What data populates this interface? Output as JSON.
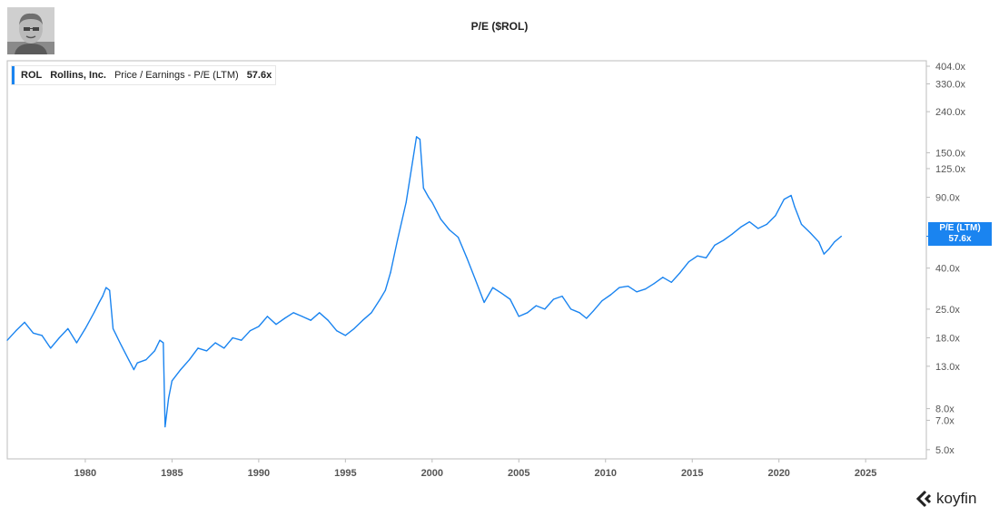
{
  "header": {
    "title": "P/E ($ROL)"
  },
  "legend": {
    "symbol": "ROL",
    "company": "Rollins, Inc.",
    "metric": "Price / Earnings - P/E (LTM)",
    "value": "57.6x",
    "color": "#1a84f0"
  },
  "value_tag": {
    "label": "P/E (LTM)",
    "value": "57.6x"
  },
  "brand": {
    "name": "koyfin"
  },
  "chart_data": {
    "type": "line",
    "title": "P/E ($ROL)",
    "xlabel": "",
    "ylabel": "",
    "y_scale": "log",
    "xlim": [
      1975.5,
      2028.5
    ],
    "ylim": [
      4.5,
      430
    ],
    "x_ticks": [
      "1980",
      "1985",
      "1990",
      "1995",
      "2000",
      "2005",
      "2010",
      "2015",
      "2020",
      "2025"
    ],
    "y_ticks": [
      "404.0x",
      "330.0x",
      "240.0x",
      "150.0x",
      "125.0x",
      "90.0x",
      "40.0x",
      "25.0x",
      "18.0x",
      "13.0x",
      "8.0x",
      "7.0x",
      "5.0x"
    ],
    "grid": false,
    "legend_position": "top-left",
    "series": [
      {
        "name": "Price / Earnings - P/E (LTM)",
        "color": "#1a84f0",
        "x": [
          1975.5,
          1976.0,
          1976.5,
          1977.0,
          1977.5,
          1978.0,
          1978.5,
          1979.0,
          1979.5,
          1980.0,
          1980.5,
          1980.8,
          1981.0,
          1981.2,
          1981.4,
          1981.6,
          1982.0,
          1982.5,
          1982.8,
          1983.0,
          1983.5,
          1984.0,
          1984.3,
          1984.5,
          1984.6,
          1984.8,
          1985.0,
          1985.5,
          1986.0,
          1986.5,
          1987.0,
          1987.5,
          1988.0,
          1988.5,
          1989.0,
          1989.5,
          1990.0,
          1990.5,
          1991.0,
          1991.5,
          1992.0,
          1992.5,
          1993.0,
          1993.5,
          1994.0,
          1994.5,
          1995.0,
          1995.5,
          1996.0,
          1996.5,
          1997.0,
          1997.3,
          1997.6,
          1998.0,
          1998.5,
          1998.9,
          1999.1,
          1999.3,
          1999.5,
          1999.8,
          2000.0,
          2000.5,
          2001.0,
          2001.5,
          2002.0,
          2002.5,
          2003.0,
          2003.5,
          2004.0,
          2004.5,
          2005.0,
          2005.5,
          2006.0,
          2006.5,
          2007.0,
          2007.5,
          2008.0,
          2008.5,
          2008.9,
          2009.3,
          2009.8,
          2010.3,
          2010.8,
          2011.3,
          2011.8,
          2012.3,
          2012.8,
          2013.3,
          2013.8,
          2014.3,
          2014.8,
          2015.3,
          2015.8,
          2016.3,
          2016.8,
          2017.3,
          2017.8,
          2018.3,
          2018.8,
          2019.3,
          2019.8,
          2020.3,
          2020.7,
          2020.9,
          2021.3,
          2021.8,
          2022.3,
          2022.6,
          2022.9,
          2023.2,
          2023.6
        ],
        "values": [
          17.5,
          19.5,
          21.5,
          19,
          18.5,
          16,
          18,
          20,
          17,
          20,
          24,
          27,
          29,
          32,
          31,
          20,
          17,
          14,
          12.5,
          13.5,
          14,
          15.5,
          17.5,
          17,
          6.5,
          9,
          11,
          12.5,
          14,
          16,
          15.5,
          17,
          16,
          18,
          17.5,
          19.5,
          20.5,
          23,
          21,
          22.5,
          24,
          23,
          22,
          24,
          22,
          19.5,
          18.5,
          20,
          22,
          24,
          28,
          31,
          38,
          55,
          85,
          140,
          180,
          175,
          100,
          90,
          85,
          70,
          62,
          57,
          45,
          35,
          27,
          32,
          30,
          28,
          23,
          24,
          26,
          25,
          28,
          29,
          25,
          24,
          22.5,
          24.5,
          27.5,
          29.5,
          32,
          32.5,
          30.5,
          31.5,
          33.5,
          36,
          34,
          38,
          43,
          46,
          45,
          52,
          55,
          59,
          64,
          68,
          63,
          66,
          73,
          88,
          92,
          81,
          66,
          60,
          54,
          47,
          50,
          54,
          57.6
        ]
      }
    ]
  }
}
